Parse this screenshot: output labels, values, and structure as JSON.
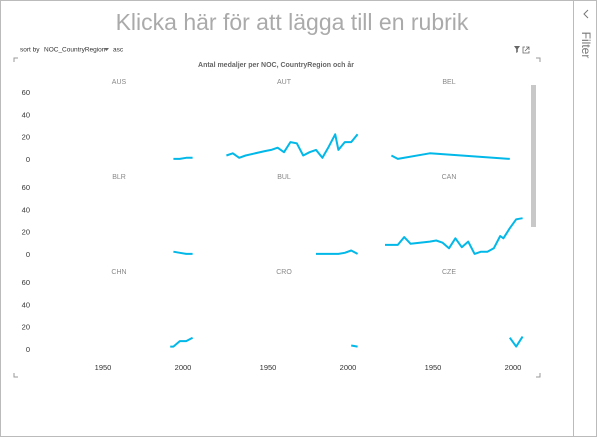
{
  "title": "Klicka här för att lägga till en rubrik",
  "sort": {
    "label": "sort by",
    "field": "NOC_CountryRegion",
    "order": "asc"
  },
  "visual_title": "Antal medaljer per NOC, CountryRegion och år",
  "filter_pane": "Filter",
  "chart_data": [
    {
      "type": "line",
      "title": "AUS",
      "color": "#01b8e8",
      "xlim": [
        1910,
        2010
      ],
      "ylim": [
        0,
        60
      ],
      "yticks": [
        0,
        20,
        40,
        60
      ],
      "x": [
        1994,
        1998,
        2002,
        2006
      ],
      "values": [
        1,
        1,
        2,
        2
      ]
    },
    {
      "type": "line",
      "title": "AUT",
      "color": "#01b8e8",
      "xlim": [
        1910,
        2010
      ],
      "ylim": [
        0,
        60
      ],
      "x": [
        1924,
        1928,
        1932,
        1936,
        1948,
        1952,
        1956,
        1960,
        1964,
        1968,
        1972,
        1976,
        1980,
        1984,
        1988,
        1992,
        1994,
        1998,
        2002,
        2006
      ],
      "values": [
        4,
        6,
        2,
        4,
        8,
        9,
        11,
        7,
        16,
        15,
        4,
        7,
        9,
        2,
        12,
        23,
        9,
        16,
        16,
        23
      ]
    },
    {
      "type": "line",
      "title": "BEL",
      "color": "#01b8e8",
      "xlim": [
        1910,
        2010
      ],
      "ylim": [
        0,
        60
      ],
      "x": [
        1924,
        1928,
        1948,
        1998
      ],
      "values": [
        4,
        1,
        6,
        1
      ]
    },
    {
      "type": "line",
      "title": "BLR",
      "color": "#01b8e8",
      "xlim": [
        1910,
        2010
      ],
      "ylim": [
        0,
        60
      ],
      "yticks": [
        0,
        20,
        40,
        60
      ],
      "x": [
        1994,
        1998,
        2002,
        2006
      ],
      "values": [
        3,
        2,
        1,
        1
      ]
    },
    {
      "type": "line",
      "title": "BUL",
      "color": "#01b8e8",
      "xlim": [
        1910,
        2010
      ],
      "ylim": [
        0,
        60
      ],
      "x": [
        1980,
        1984,
        1988,
        1994,
        1998,
        2002,
        2006
      ],
      "values": [
        1,
        1,
        1,
        1,
        2,
        4,
        1
      ]
    },
    {
      "type": "line",
      "title": "CAN",
      "color": "#01b8e8",
      "xlim": [
        1910,
        2010
      ],
      "ylim": [
        0,
        60
      ],
      "x": [
        1920,
        1924,
        1928,
        1932,
        1936,
        1948,
        1952,
        1956,
        1960,
        1964,
        1968,
        1972,
        1976,
        1980,
        1984,
        1988,
        1992,
        1994,
        1998,
        2002,
        2006
      ],
      "values": [
        9,
        9,
        9,
        16,
        10,
        12,
        13,
        11,
        6,
        15,
        7,
        12,
        1,
        3,
        3,
        6,
        17,
        15,
        24,
        32,
        33
      ]
    },
    {
      "type": "line",
      "title": "CHN",
      "color": "#01b8e8",
      "xlim": [
        1910,
        2010
      ],
      "ylim": [
        0,
        60
      ],
      "yticks": [
        0,
        20,
        40,
        60
      ],
      "xticks": [
        1950,
        2000
      ],
      "x": [
        1992,
        1994,
        1998,
        2002,
        2006
      ],
      "values": [
        3,
        3,
        8,
        8,
        11
      ]
    },
    {
      "type": "line",
      "title": "CRO",
      "color": "#01b8e8",
      "xlim": [
        1910,
        2010
      ],
      "ylim": [
        0,
        60
      ],
      "xticks": [
        1950,
        2000
      ],
      "x": [
        2002,
        2006
      ],
      "values": [
        4,
        3
      ]
    },
    {
      "type": "line",
      "title": "CZE",
      "color": "#01b8e8",
      "xlim": [
        1910,
        2010
      ],
      "ylim": [
        0,
        60
      ],
      "xticks": [
        1950,
        2000
      ],
      "x": [
        1998,
        2002,
        2006
      ],
      "values": [
        11,
        3,
        12
      ]
    }
  ]
}
